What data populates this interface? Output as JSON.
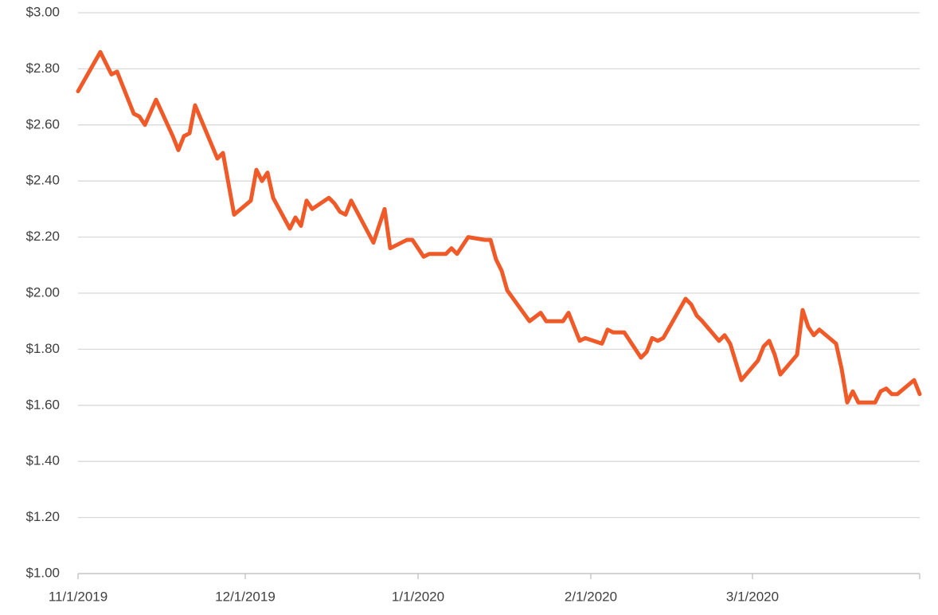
{
  "chart_data": {
    "type": "line",
    "x": [
      "2019-11-01",
      "2019-11-05",
      "2019-11-06",
      "2019-11-07",
      "2019-11-08",
      "2019-11-11",
      "2019-11-12",
      "2019-11-13",
      "2019-11-15",
      "2019-11-18",
      "2019-11-19",
      "2019-11-20",
      "2019-11-21",
      "2019-11-22",
      "2019-11-26",
      "2019-11-27",
      "2019-11-29",
      "2019-12-02",
      "2019-12-03",
      "2019-12-04",
      "2019-12-05",
      "2019-12-06",
      "2019-12-09",
      "2019-12-10",
      "2019-12-11",
      "2019-12-12",
      "2019-12-13",
      "2019-12-16",
      "2019-12-17",
      "2019-12-18",
      "2019-12-19",
      "2019-12-20",
      "2019-12-24",
      "2019-12-26",
      "2019-12-27",
      "2019-12-30",
      "2019-12-31",
      "2020-01-02",
      "2020-01-03",
      "2020-01-06",
      "2020-01-07",
      "2020-01-08",
      "2020-01-10",
      "2020-01-13",
      "2020-01-14",
      "2020-01-15",
      "2020-01-16",
      "2020-01-17",
      "2020-01-21",
      "2020-01-23",
      "2020-01-24",
      "2020-01-27",
      "2020-01-28",
      "2020-01-29",
      "2020-01-30",
      "2020-01-31",
      "2020-02-03",
      "2020-02-04",
      "2020-02-05",
      "2020-02-07",
      "2020-02-10",
      "2020-02-11",
      "2020-02-12",
      "2020-02-13",
      "2020-02-14",
      "2020-02-18",
      "2020-02-19",
      "2020-02-20",
      "2020-02-21",
      "2020-02-24",
      "2020-02-25",
      "2020-02-26",
      "2020-02-28",
      "2020-03-02",
      "2020-03-03",
      "2020-03-04",
      "2020-03-05",
      "2020-03-06",
      "2020-03-09",
      "2020-03-10",
      "2020-03-11",
      "2020-03-12",
      "2020-03-13",
      "2020-03-16",
      "2020-03-17",
      "2020-03-18",
      "2020-03-19",
      "2020-03-20",
      "2020-03-23",
      "2020-03-24",
      "2020-03-25",
      "2020-03-26",
      "2020-03-27",
      "2020-03-30",
      "2020-03-31"
    ],
    "series": [
      {
        "color": "#f05a28",
        "values": [
          2.72,
          2.86,
          2.82,
          2.78,
          2.79,
          2.64,
          2.63,
          2.6,
          2.69,
          2.56,
          2.51,
          2.56,
          2.57,
          2.67,
          2.48,
          2.5,
          2.28,
          2.33,
          2.44,
          2.4,
          2.43,
          2.34,
          2.23,
          2.27,
          2.24,
          2.33,
          2.3,
          2.34,
          2.32,
          2.29,
          2.28,
          2.33,
          2.18,
          2.3,
          2.16,
          2.19,
          2.19,
          2.13,
          2.14,
          2.14,
          2.16,
          2.14,
          2.2,
          2.19,
          2.19,
          2.12,
          2.08,
          2.01,
          1.9,
          1.93,
          1.9,
          1.9,
          1.93,
          1.88,
          1.83,
          1.84,
          1.82,
          1.87,
          1.86,
          1.86,
          1.77,
          1.79,
          1.84,
          1.83,
          1.84,
          1.98,
          1.96,
          1.92,
          1.9,
          1.83,
          1.85,
          1.82,
          1.69,
          1.76,
          1.81,
          1.83,
          1.78,
          1.71,
          1.78,
          1.94,
          1.88,
          1.85,
          1.87,
          1.82,
          1.73,
          1.61,
          1.65,
          1.61,
          1.61,
          1.65,
          1.66,
          1.64,
          1.64,
          1.69,
          1.64
        ]
      }
    ],
    "xlim": [
      "2019-11-01",
      "2020-03-31"
    ],
    "xticks": [
      {
        "value": "2019-11-01",
        "label": "11/1/2019"
      },
      {
        "value": "2019-12-01",
        "label": "12/1/2019"
      },
      {
        "value": "2020-01-01",
        "label": "1/1/2020"
      },
      {
        "value": "2020-02-01",
        "label": "2/1/2020"
      },
      {
        "value": "2020-03-01",
        "label": "3/1/2020"
      }
    ],
    "ylim": [
      1,
      3
    ],
    "yticks": [
      {
        "value": 1,
        "label": "$1.00"
      },
      {
        "value": 1.2,
        "label": "$1.20"
      },
      {
        "value": 1.4,
        "label": "$1.40"
      },
      {
        "value": 1.6,
        "label": "$1.60"
      },
      {
        "value": 1.8,
        "label": "$1.80"
      },
      {
        "value": 2,
        "label": "$2.00"
      },
      {
        "value": 2.2,
        "label": "$2.20"
      },
      {
        "value": 2.4,
        "label": "$2.40"
      },
      {
        "value": 2.6,
        "label": "$2.60"
      },
      {
        "value": 2.8,
        "label": "$2.80"
      },
      {
        "value": 3,
        "label": "$3.00"
      }
    ],
    "grid": true
  }
}
